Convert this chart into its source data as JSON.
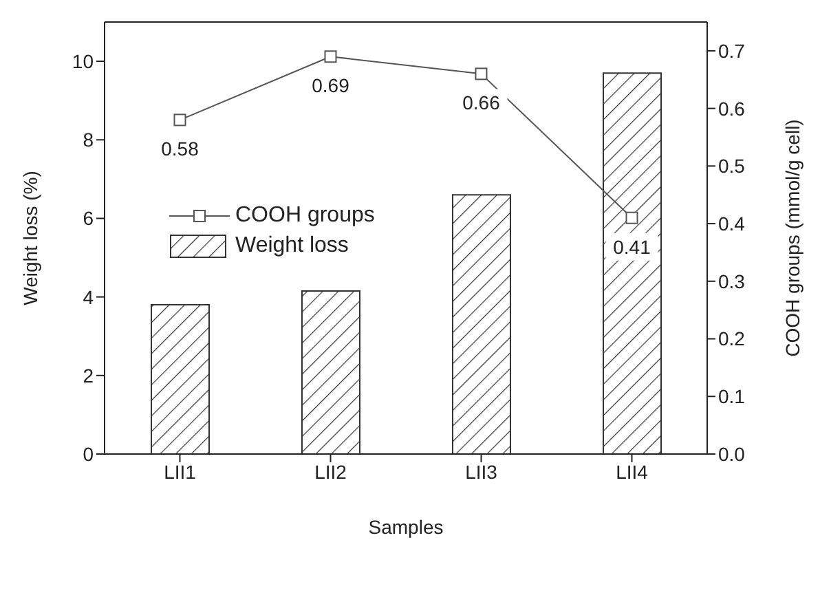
{
  "chart_data": {
    "type": "bar",
    "xlabel": "Samples",
    "ylabel": "Weight loss (%)",
    "y2label": "COOH groups (mmol/g cell)",
    "categories": [
      "LII1",
      "LII2",
      "LII3",
      "LII4"
    ],
    "series": [
      {
        "name": "COOH groups",
        "type": "line",
        "axis": "y2",
        "color": "#555555",
        "marker": "square",
        "values": [
          0.58,
          0.69,
          0.66,
          0.41
        ],
        "value_labels": [
          "0.58",
          "0.69",
          "0.66",
          "0.41"
        ]
      },
      {
        "name": "Weight loss",
        "color": "#333333",
        "values": [
          3.8,
          4.15,
          6.6,
          9.7
        ]
      }
    ],
    "ylim": [
      0,
      11
    ],
    "yticks": [
      0,
      2,
      4,
      6,
      8,
      10
    ],
    "y2lim": [
      0,
      0.75
    ],
    "y2ticks": [
      {
        "value": 0,
        "label": "0.0"
      },
      0.1,
      0.2,
      0.3,
      0.4,
      0.5,
      0.6,
      0.7
    ],
    "legend": "left",
    "grid": false
  }
}
